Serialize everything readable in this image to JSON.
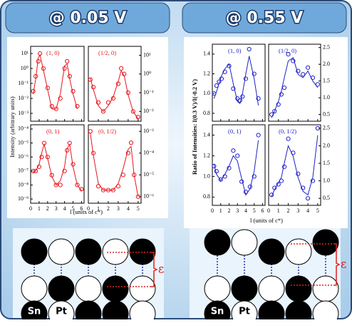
{
  "headers": [
    "@ 0.05 V",
    "@ 0.55 V"
  ],
  "figures": [
    {
      "ylabel": "Intensity (arbitrary units)",
      "xlabel": "l (units of c*)"
    },
    {
      "ylabel": "Ratio of Intensities: I(0.3 V)/I(-0.2 V)",
      "xlabel": "l (units of c*)"
    }
  ],
  "chart_data": [
    {
      "type": "scatter",
      "annotation": "(1, 0)",
      "log": true,
      "ylim": [
        0.0003,
        30
      ],
      "yticks": [
        {
          "value": 10,
          "label": "10¹"
        },
        {
          "value": 1,
          "label": "10⁰"
        },
        {
          "value": 0.1,
          "label": "10⁻¹"
        },
        {
          "value": 0.01,
          "label": "10⁻²"
        },
        {
          "value": 0.001,
          "label": "10⁻³"
        }
      ],
      "xlim": [
        0,
        6.3
      ],
      "xticks": [
        0,
        1,
        2,
        3,
        4,
        5,
        6
      ],
      "x": [
        0.3,
        0.6,
        0.9,
        1.1,
        1.5,
        2,
        2.5,
        3,
        3.5,
        4,
        4.3,
        4.6,
        5,
        5.5
      ],
      "series": [
        {
          "color": "#e8141c",
          "marker": "circle",
          "values": [
            0.03,
            0.3,
            3,
            10,
            1,
            0.05,
            0.003,
            0.002,
            0.01,
            1,
            3,
            0.3,
            0.03,
            0.003
          ]
        },
        {
          "color": "#e8141c",
          "marker": "none",
          "values": [
            0.02,
            0.2,
            5,
            8,
            0.8,
            0.04,
            0.002,
            0.002,
            0.02,
            1.5,
            2,
            0.2,
            0.02,
            0.002
          ]
        }
      ]
    },
    {
      "type": "scatter",
      "annotation": "(1/2, 0)",
      "log": true,
      "ylim": [
        0.003,
        30
      ],
      "yticks": [
        {
          "value": 10,
          "label": "10¹"
        },
        {
          "value": 1,
          "label": "10⁰"
        },
        {
          "value": 0.1,
          "label": "10⁻¹"
        },
        {
          "value": 0.01,
          "label": "10⁻²"
        }
      ],
      "xlim": [
        0,
        5.3
      ],
      "xticks": [
        0,
        1,
        2,
        3,
        4,
        5
      ],
      "x": [
        0.2,
        0.5,
        1,
        1.5,
        2,
        2.5,
        3,
        3.3,
        3.6,
        4,
        4.5,
        5
      ],
      "series": [
        {
          "color": "#e8141c",
          "marker": "circle",
          "values": [
            0.5,
            0.2,
            0.03,
            0.01,
            0.03,
            0.05,
            0.3,
            2,
            1,
            0.1,
            0.01,
            0.005
          ]
        },
        {
          "color": "#e8141c",
          "marker": "none",
          "values": [
            0.6,
            0.15,
            0.02,
            0.01,
            0.02,
            0.06,
            0.4,
            1.5,
            0.8,
            0.08,
            0.01,
            0.004
          ]
        }
      ]
    },
    {
      "type": "scatter",
      "annotation": "(0, 1)",
      "log": true,
      "ylim": [
        5e-10,
        0.0002
      ],
      "yticks": [
        {
          "value": 0.0001,
          "label": "10⁻⁴"
        },
        {
          "value": 1e-05,
          "label": "10⁻⁵"
        },
        {
          "value": 1e-06,
          "label": "10⁻⁶"
        },
        {
          "value": 1e-07,
          "label": "10⁻⁷"
        },
        {
          "value": 1e-08,
          "label": "10⁻⁸"
        },
        {
          "value": 1e-09,
          "label": "10⁻⁹"
        }
      ],
      "xlim": [
        0,
        6.3
      ],
      "xticks": [
        0,
        1,
        2,
        3,
        4,
        5,
        6
      ],
      "x": [
        0.3,
        0.6,
        1,
        1.3,
        1.6,
        2,
        2.5,
        3,
        3.5,
        4,
        4.3,
        4.6,
        5,
        5.5,
        6
      ],
      "series": [
        {
          "color": "#e8141c",
          "marker": "circle",
          "values": [
            1e-07,
            1e-07,
            2e-07,
            1e-06,
            1e-05,
            1e-06,
            5e-08,
            1e-08,
            1e-08,
            1e-07,
            3e-06,
            1e-05,
            3e-07,
            1e-08,
            5e-09
          ]
        },
        {
          "color": "#e8141c",
          "marker": "none",
          "values": [
            8e-08,
            1e-07,
            3e-07,
            2e-06,
            8e-06,
            8e-07,
            4e-08,
            1e-08,
            2e-08,
            2e-07,
            4e-06,
            8e-06,
            2e-07,
            1e-08,
            4e-09
          ]
        }
      ]
    },
    {
      "type": "scatter",
      "annotation": "(0, 1/2)",
      "log": true,
      "ylim": [
        5e-07,
        0.002
      ],
      "yticks": [
        {
          "value": 0.001,
          "label": "10⁻³"
        },
        {
          "value": 0.0001,
          "label": "10⁻⁴"
        },
        {
          "value": 1e-05,
          "label": "10⁻⁵"
        },
        {
          "value": 1e-06,
          "label": "10⁻⁶"
        }
      ],
      "xlim": [
        0,
        5.3
      ],
      "xticks": [
        0,
        1,
        2,
        3,
        4,
        5
      ],
      "x": [
        0.2,
        0.5,
        1,
        1.5,
        2,
        2.5,
        3,
        3.5,
        4,
        4.3,
        4.6,
        5
      ],
      "series": [
        {
          "color": "#e8141c",
          "marker": "circle",
          "values": [
            0.001,
            0.0001,
            3e-06,
            2e-06,
            2e-06,
            2e-06,
            3e-06,
            1e-05,
            0.0001,
            0.0003,
            1e-05,
            1e-06
          ]
        },
        {
          "color": "#e8141c",
          "marker": "none",
          "values": [
            0.0008,
            8e-05,
            4e-06,
            2e-06,
            2e-06,
            2e-06,
            4e-06,
            2e-05,
            0.00015,
            0.0002,
            1e-05,
            1e-06
          ]
        }
      ]
    },
    {
      "type": "scatter",
      "annotation": "(1, 0)",
      "log": false,
      "ylim": [
        0.72,
        1.5
      ],
      "yticks": [
        {
          "value": 0.8,
          "label": "0.8"
        },
        {
          "value": 1,
          "label": "1.0"
        },
        {
          "value": 1.2,
          "label": "1.2"
        },
        {
          "value": 1.4,
          "label": "1.4"
        }
      ],
      "xlim": [
        0,
        6.3
      ],
      "xticks": [
        0,
        1,
        2,
        3,
        4,
        5,
        6
      ],
      "x": [
        0.2,
        0.5,
        0.8,
        1.1,
        1.5,
        2,
        2.5,
        3,
        3.3,
        3.6,
        4,
        4.4,
        5,
        5.5
      ],
      "series": [
        {
          "color": "#2020c8",
          "marker": "circle",
          "values": [
            1.0,
            1.08,
            1.12,
            1.15,
            1.22,
            1.28,
            1.05,
            0.95,
            0.93,
            0.97,
            1.15,
            1.45,
            1.2,
            0.95
          ]
        },
        {
          "color": "#2020c8",
          "marker": "none",
          "values": [
            0.95,
            1.02,
            1.1,
            1.18,
            1.25,
            1.3,
            1.1,
            0.92,
            0.9,
            1.0,
            1.2,
            1.38,
            1.15,
            0.88
          ]
        }
      ]
    },
    {
      "type": "scatter",
      "annotation": "(1/2, 0)",
      "log": false,
      "ylim": [
        0.3,
        2.6
      ],
      "yticks": [
        {
          "value": 0.5,
          "label": "0.5"
        },
        {
          "value": 1,
          "label": "1.0"
        },
        {
          "value": 1.5,
          "label": "1.5"
        },
        {
          "value": 2,
          "label": "2.0"
        },
        {
          "value": 2.5,
          "label": "2.5"
        }
      ],
      "xlim": [
        0,
        5.3
      ],
      "xticks": [
        0,
        1,
        2,
        3,
        4,
        5
      ],
      "x": [
        0.3,
        0.6,
        1,
        1.3,
        1.6,
        2,
        2.5,
        3,
        3.5,
        4,
        4.5,
        5
      ],
      "series": [
        {
          "color": "#2020c8",
          "marker": "circle",
          "values": [
            0.5,
            0.6,
            0.8,
            1.1,
            1.3,
            2.3,
            2.1,
            1.8,
            1.7,
            1.9,
            1.6,
            1.4
          ]
        },
        {
          "color": "#2020c8",
          "marker": "none",
          "values": [
            0.4,
            0.6,
            0.9,
            1.2,
            1.6,
            2.1,
            2.2,
            1.7,
            1.6,
            1.8,
            1.5,
            1.3
          ]
        }
      ]
    },
    {
      "type": "scatter",
      "annotation": "(0, 1)",
      "log": false,
      "ylim": [
        0.72,
        1.5
      ],
      "yticks": [
        {
          "value": 0.8,
          "label": "0.8"
        },
        {
          "value": 1,
          "label": "1.0"
        },
        {
          "value": 1.2,
          "label": "1.2"
        },
        {
          "value": 1.4,
          "label": "1.4"
        }
      ],
      "xlim": [
        0,
        6.3
      ],
      "xticks": [
        0,
        1,
        2,
        3,
        4,
        5,
        6
      ],
      "x": [
        0.2,
        0.5,
        1,
        1.5,
        2,
        2.5,
        3,
        3.5,
        4,
        4.5,
        5,
        5.5
      ],
      "series": [
        {
          "color": "#2020c8",
          "marker": "circle",
          "values": [
            1.1,
            1.05,
            0.97,
            1.0,
            1.08,
            1.25,
            1.2,
            0.95,
            0.85,
            0.9,
            1.0,
            1.4
          ]
        },
        {
          "color": "#2020c8",
          "marker": "none",
          "values": [
            1.12,
            1.02,
            0.96,
            1.02,
            1.1,
            1.2,
            1.15,
            0.98,
            0.82,
            0.88,
            1.05,
            1.35
          ]
        }
      ]
    },
    {
      "type": "scatter",
      "annotation": "(0, 1/2)",
      "log": false,
      "ylim": [
        0.3,
        2.6
      ],
      "yticks": [
        {
          "value": 0.5,
          "label": "0.5"
        },
        {
          "value": 1,
          "label": "1.0"
        },
        {
          "value": 1.5,
          "label": "1.5"
        },
        {
          "value": 2,
          "label": "2.0"
        },
        {
          "value": 2.5,
          "label": "2.5"
        }
      ],
      "xlim": [
        0,
        5.3
      ],
      "xticks": [
        0,
        1,
        2,
        3,
        4,
        5
      ],
      "x": [
        0.3,
        0.6,
        1,
        1.3,
        1.6,
        2,
        2.5,
        3,
        3.5,
        4,
        4.5,
        5
      ],
      "series": [
        {
          "color": "#2020c8",
          "marker": "circle",
          "values": [
            0.6,
            0.8,
            0.9,
            1.0,
            1.4,
            2.2,
            1.8,
            1.2,
            0.8,
            0.5,
            1.0,
            2.5
          ]
        },
        {
          "color": "#2020c8",
          "marker": "none",
          "values": [
            0.55,
            0.75,
            0.95,
            1.1,
            1.5,
            2.0,
            1.7,
            1.1,
            0.7,
            0.6,
            1.1,
            2.3
          ]
        }
      ]
    }
  ],
  "diagrams": [
    {
      "atoms": [
        "Sn",
        "Pt"
      ],
      "strain": "ε"
    },
    {
      "atoms": [
        "Sn",
        "Pt"
      ],
      "strain": "ε"
    }
  ]
}
